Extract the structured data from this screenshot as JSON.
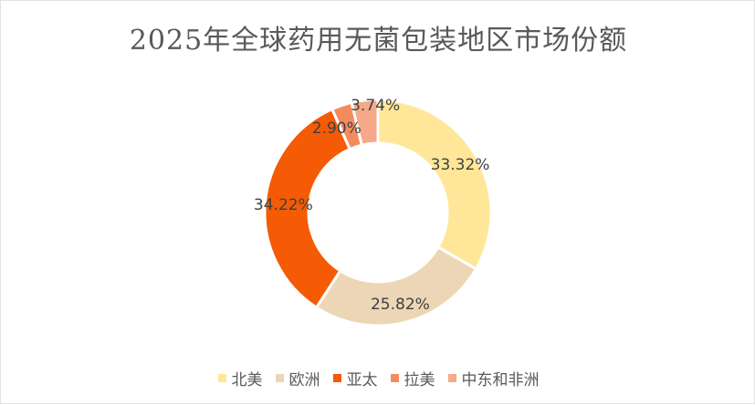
{
  "chart_data": {
    "type": "donut",
    "title": "2025年全球药用无菌包装地区市场份额",
    "categories": [
      "北美",
      "欧洲",
      "亚太",
      "拉美",
      "中东和非洲"
    ],
    "values": [
      33.32,
      25.82,
      34.22,
      2.9,
      3.74
    ],
    "labels": [
      "33.32%",
      "25.82%",
      "34.22%",
      "2.90%",
      "3.74%"
    ],
    "colors": [
      "#FFE699",
      "#EDD6B5",
      "#F55A05",
      "#F48B5F",
      "#F5A988"
    ],
    "legend_position": "bottom",
    "start_angle_deg": 0,
    "direction": "clockwise"
  }
}
